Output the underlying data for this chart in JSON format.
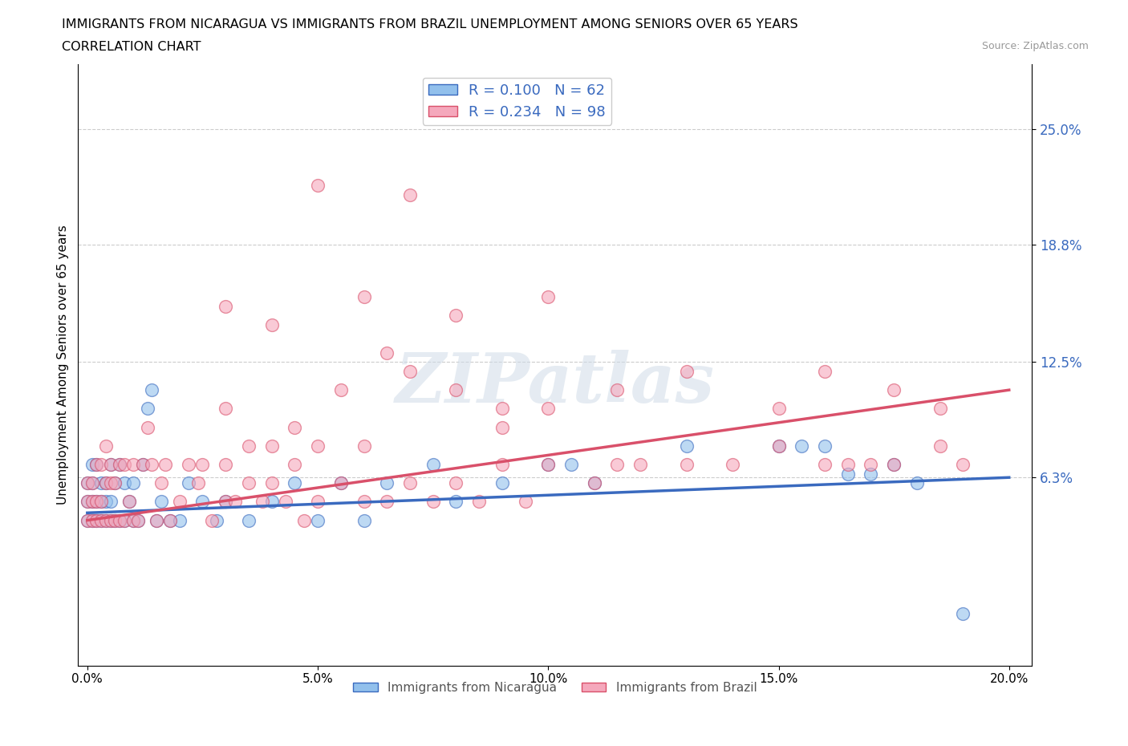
{
  "title_line1": "IMMIGRANTS FROM NICARAGUA VS IMMIGRANTS FROM BRAZIL UNEMPLOYMENT AMONG SENIORS OVER 65 YEARS",
  "title_line2": "CORRELATION CHART",
  "source_text": "Source: ZipAtlas.com",
  "ylabel": "Unemployment Among Seniors over 65 years",
  "legend_label1": "Immigrants from Nicaragua",
  "legend_label2": "Immigrants from Brazil",
  "R1": 0.1,
  "N1": 62,
  "R2": 0.234,
  "N2": 98,
  "xlim_min": -0.002,
  "xlim_max": 0.205,
  "ylim_min": -0.038,
  "ylim_max": 0.285,
  "xtick_vals": [
    0.0,
    0.05,
    0.1,
    0.15,
    0.2
  ],
  "yticks_right": [
    0.063,
    0.125,
    0.188,
    0.25
  ],
  "yticks_right_labels": [
    "6.3%",
    "12.5%",
    "18.8%",
    "25.0%"
  ],
  "color1": "#92C0EC",
  "color2": "#F5A8BC",
  "trendline_color1": "#3A6ABF",
  "trendline_color2": "#D9506A",
  "watermark_text": "ZIPatlas",
  "background_color": "#FFFFFF",
  "trend1_x0": 0.0,
  "trend1_y0": 0.044,
  "trend1_x1": 0.2,
  "trend1_y1": 0.063,
  "trend2_x0": 0.0,
  "trend2_y0": 0.04,
  "trend2_x1": 0.2,
  "trend2_y1": 0.11,
  "scatter1_x": [
    0.0,
    0.0,
    0.0,
    0.001,
    0.001,
    0.001,
    0.001,
    0.002,
    0.002,
    0.002,
    0.003,
    0.003,
    0.003,
    0.004,
    0.004,
    0.004,
    0.005,
    0.005,
    0.005,
    0.006,
    0.006,
    0.007,
    0.007,
    0.008,
    0.008,
    0.009,
    0.01,
    0.01,
    0.011,
    0.012,
    0.013,
    0.014,
    0.015,
    0.016,
    0.018,
    0.02,
    0.022,
    0.025,
    0.028,
    0.03,
    0.035,
    0.04,
    0.045,
    0.05,
    0.055,
    0.06,
    0.065,
    0.075,
    0.08,
    0.09,
    0.1,
    0.105,
    0.11,
    0.13,
    0.15,
    0.155,
    0.16,
    0.165,
    0.17,
    0.175,
    0.18,
    0.19
  ],
  "scatter1_y": [
    0.05,
    0.04,
    0.06,
    0.05,
    0.04,
    0.06,
    0.07,
    0.05,
    0.04,
    0.07,
    0.05,
    0.04,
    0.06,
    0.05,
    0.04,
    0.06,
    0.04,
    0.05,
    0.07,
    0.04,
    0.06,
    0.04,
    0.07,
    0.04,
    0.06,
    0.05,
    0.04,
    0.06,
    0.04,
    0.07,
    0.1,
    0.11,
    0.04,
    0.05,
    0.04,
    0.04,
    0.06,
    0.05,
    0.04,
    0.05,
    0.04,
    0.05,
    0.06,
    0.04,
    0.06,
    0.04,
    0.06,
    0.07,
    0.05,
    0.06,
    0.07,
    0.07,
    0.06,
    0.08,
    0.08,
    0.08,
    0.08,
    0.065,
    0.065,
    0.07,
    0.06,
    -0.01
  ],
  "scatter2_x": [
    0.0,
    0.0,
    0.0,
    0.001,
    0.001,
    0.001,
    0.002,
    0.002,
    0.002,
    0.003,
    0.003,
    0.003,
    0.004,
    0.004,
    0.004,
    0.005,
    0.005,
    0.005,
    0.006,
    0.006,
    0.007,
    0.007,
    0.008,
    0.008,
    0.009,
    0.01,
    0.01,
    0.011,
    0.012,
    0.013,
    0.014,
    0.015,
    0.016,
    0.017,
    0.018,
    0.02,
    0.022,
    0.024,
    0.025,
    0.027,
    0.03,
    0.03,
    0.032,
    0.035,
    0.035,
    0.038,
    0.04,
    0.04,
    0.043,
    0.045,
    0.047,
    0.05,
    0.05,
    0.055,
    0.06,
    0.06,
    0.065,
    0.07,
    0.075,
    0.08,
    0.085,
    0.09,
    0.095,
    0.1,
    0.11,
    0.115,
    0.12,
    0.13,
    0.14,
    0.15,
    0.16,
    0.165,
    0.17,
    0.175,
    0.185,
    0.19,
    0.03,
    0.045,
    0.055,
    0.065,
    0.07,
    0.08,
    0.09,
    0.1,
    0.115,
    0.13,
    0.15,
    0.16,
    0.175,
    0.185,
    0.03,
    0.04,
    0.06,
    0.08,
    0.1,
    0.05,
    0.07,
    0.09
  ],
  "scatter2_y": [
    0.05,
    0.04,
    0.06,
    0.05,
    0.04,
    0.06,
    0.05,
    0.04,
    0.07,
    0.05,
    0.04,
    0.07,
    0.04,
    0.06,
    0.08,
    0.04,
    0.06,
    0.07,
    0.04,
    0.06,
    0.04,
    0.07,
    0.04,
    0.07,
    0.05,
    0.04,
    0.07,
    0.04,
    0.07,
    0.09,
    0.07,
    0.04,
    0.06,
    0.07,
    0.04,
    0.05,
    0.07,
    0.06,
    0.07,
    0.04,
    0.05,
    0.07,
    0.05,
    0.06,
    0.08,
    0.05,
    0.06,
    0.08,
    0.05,
    0.07,
    0.04,
    0.05,
    0.08,
    0.06,
    0.05,
    0.08,
    0.05,
    0.06,
    0.05,
    0.06,
    0.05,
    0.07,
    0.05,
    0.07,
    0.06,
    0.07,
    0.07,
    0.07,
    0.07,
    0.08,
    0.07,
    0.07,
    0.07,
    0.07,
    0.08,
    0.07,
    0.1,
    0.09,
    0.11,
    0.13,
    0.12,
    0.11,
    0.1,
    0.1,
    0.11,
    0.12,
    0.1,
    0.12,
    0.11,
    0.1,
    0.155,
    0.145,
    0.16,
    0.15,
    0.16,
    0.22,
    0.215,
    0.09
  ]
}
